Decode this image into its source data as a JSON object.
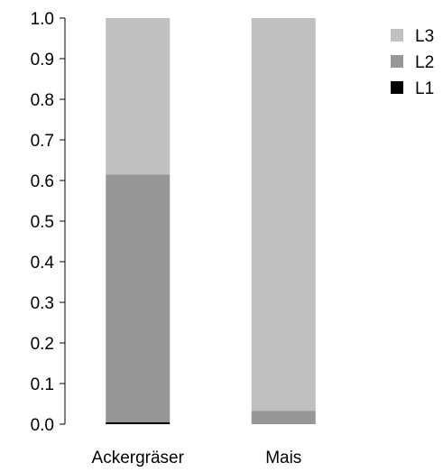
{
  "chart_data": {
    "type": "bar",
    "stacked": true,
    "categories": [
      "Ackergräser",
      "Mais"
    ],
    "series": [
      {
        "name": "L1",
        "values": [
          0.005,
          0.0
        ],
        "color": "#000000"
      },
      {
        "name": "L2",
        "values": [
          0.61,
          0.033
        ],
        "color": "#969696"
      },
      {
        "name": "L3",
        "values": [
          0.385,
          0.967
        ],
        "color": "#c0c0c0"
      }
    ],
    "yticks": [
      "0.0",
      "0.1",
      "0.2",
      "0.3",
      "0.4",
      "0.5",
      "0.6",
      "0.7",
      "0.8",
      "0.9",
      "1.0"
    ],
    "ylim": [
      0,
      1.0
    ],
    "legend_order": [
      "L3",
      "L2",
      "L1"
    ],
    "legend_position": "top-right",
    "grid": false
  }
}
